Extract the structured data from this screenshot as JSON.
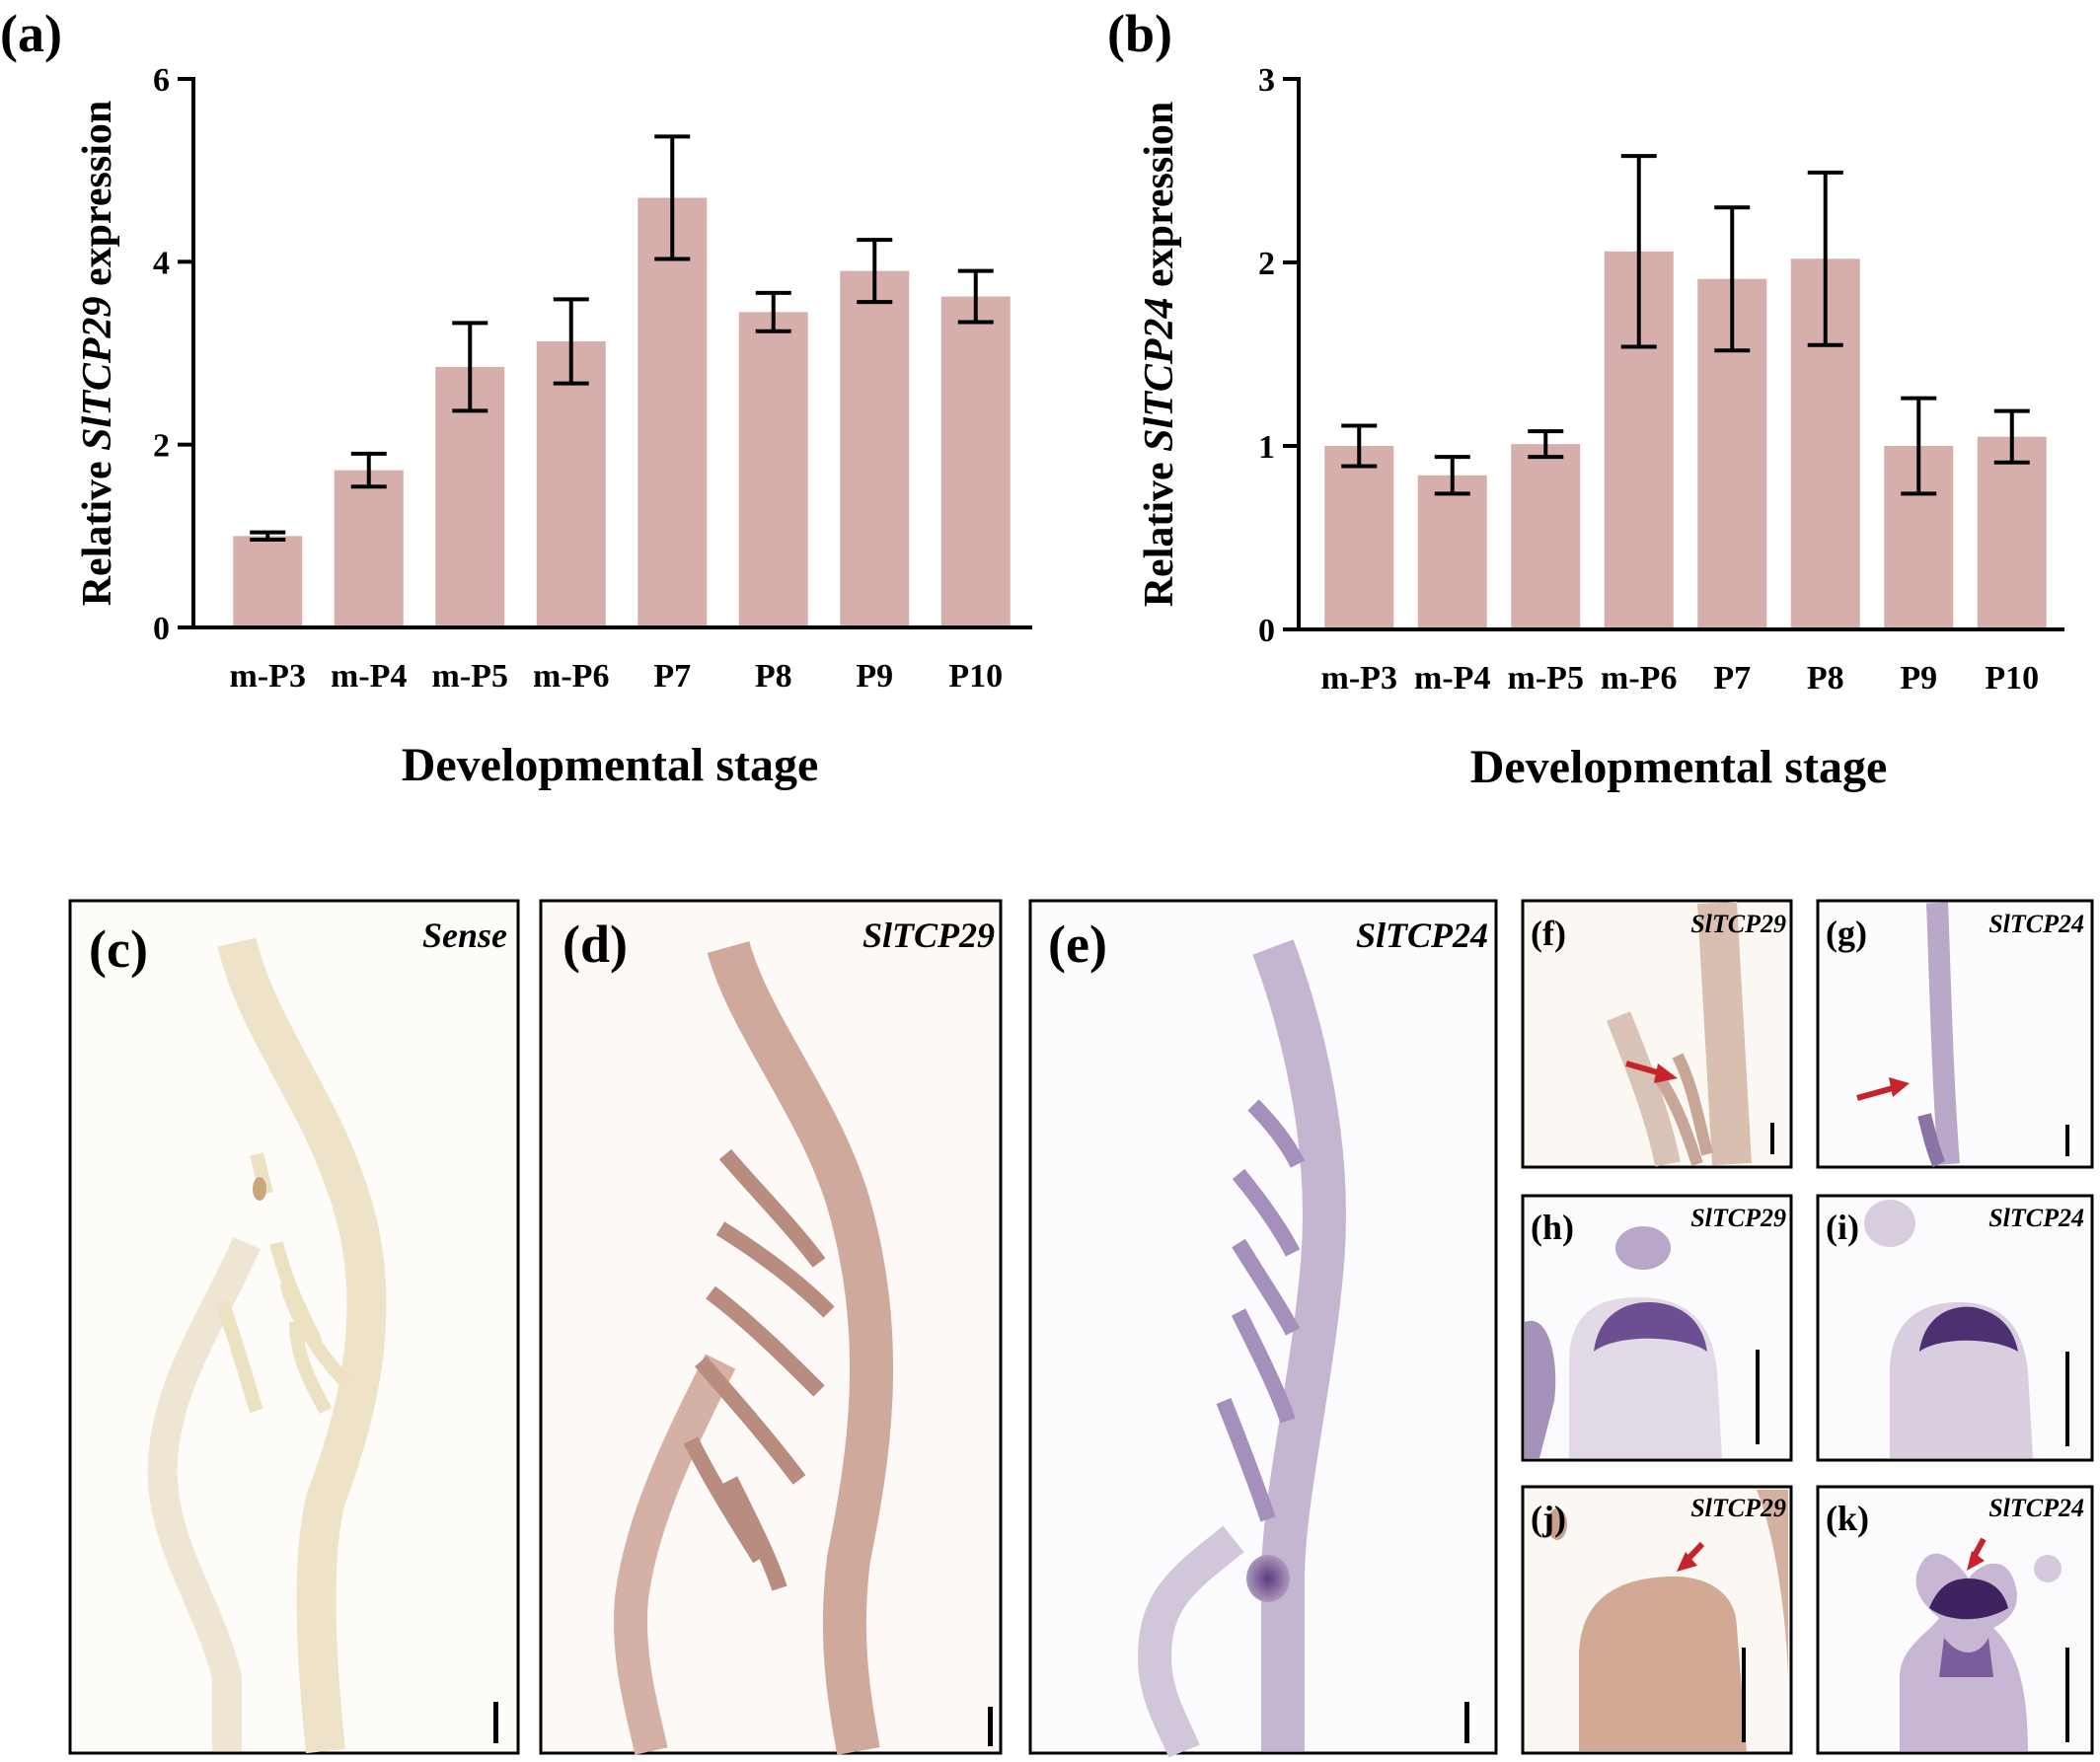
{
  "panels": {
    "a": "(a)",
    "b": "(b)",
    "c": "(c)",
    "d": "(d)",
    "e": "(e)",
    "f": "(f)",
    "g": "(g)",
    "h": "(h)",
    "i": "(i)",
    "j": "(j)",
    "k": "(k)"
  },
  "micro_titles": {
    "c": "Sense",
    "d": "SlTCP29",
    "e": "SlTCP24",
    "f": "SlTCP29",
    "g": "SlTCP24",
    "h": "SlTCP29",
    "i": "SlTCP24",
    "j": "SlTCP29",
    "k": "SlTCP24"
  },
  "colors": {
    "bar": "#d6aeab",
    "axis": "#000000"
  },
  "chart_data": [
    {
      "type": "bar",
      "panel": "(a)",
      "ylabel_prefix": "Relative ",
      "ylabel_gene": "SlTCP29",
      "ylabel_suffix": " expression",
      "xlabel": "Developmental stage",
      "ylim": [
        0,
        6
      ],
      "yticks": [
        0,
        2,
        4,
        6
      ],
      "categories": [
        "m-P3",
        "m-P4",
        "m-P5",
        "m-P6",
        "P7",
        "P8",
        "P9",
        "P10"
      ],
      "values": [
        1.0,
        1.72,
        2.85,
        3.13,
        4.7,
        3.45,
        3.9,
        3.62
      ],
      "error": [
        0.04,
        0.18,
        0.48,
        0.46,
        0.67,
        0.21,
        0.34,
        0.28
      ],
      "grid": false
    },
    {
      "type": "bar",
      "panel": "(b)",
      "ylabel_prefix": "Relative ",
      "ylabel_gene": "SlTCP24",
      "ylabel_suffix": " expression",
      "xlabel": "Developmental stage",
      "ylim": [
        0,
        3
      ],
      "yticks": [
        0,
        1,
        2,
        3
      ],
      "categories": [
        "m-P3",
        "m-P4",
        "m-P5",
        "m-P6",
        "P7",
        "P8",
        "P9",
        "P10"
      ],
      "values": [
        1.0,
        0.84,
        1.01,
        2.06,
        1.91,
        2.02,
        1.0,
        1.05
      ],
      "error": [
        0.11,
        0.1,
        0.07,
        0.52,
        0.39,
        0.47,
        0.26,
        0.14
      ],
      "grid": false
    }
  ]
}
